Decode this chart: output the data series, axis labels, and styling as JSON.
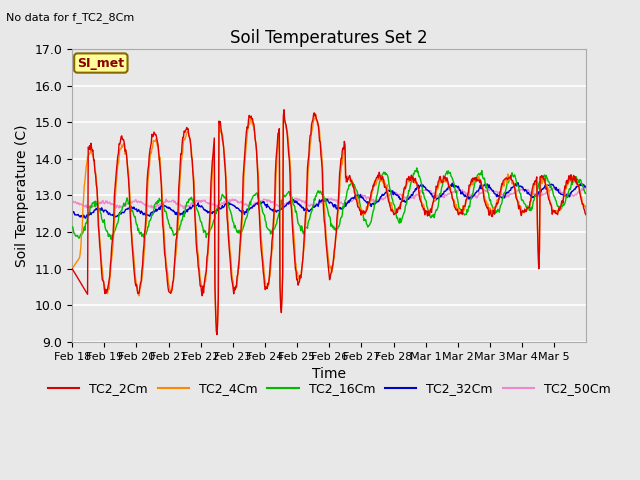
{
  "title": "Soil Temperatures Set 2",
  "subtitle": "No data for f_TC2_8Cm",
  "xlabel": "Time",
  "ylabel": "Soil Temperature (C)",
  "ylim": [
    9.0,
    17.0
  ],
  "yticks": [
    9.0,
    10.0,
    11.0,
    12.0,
    13.0,
    14.0,
    15.0,
    16.0,
    17.0
  ],
  "background_color": "#e8e8e8",
  "plot_bg_color": "#e8e8e8",
  "grid_color": "#ffffff",
  "series_colors": {
    "TC2_2Cm": "#dd0000",
    "TC2_4Cm": "#ff8800",
    "TC2_16Cm": "#00bb00",
    "TC2_32Cm": "#0000cc",
    "TC2_50Cm": "#ee88cc"
  },
  "legend_label": "SI_met",
  "legend_bg": "#ffff99",
  "legend_border": "#886600",
  "xticklabels": [
    "Feb 18",
    "Feb 19",
    "Feb 20",
    "Feb 21",
    "Feb 22",
    "Feb 23",
    "Feb 24",
    "Feb 25",
    "Feb 26",
    "Feb 27",
    "Feb 28",
    "Mar 1",
    "Mar 2",
    "Mar 3",
    "Mar 4",
    "Mar 5"
  ]
}
